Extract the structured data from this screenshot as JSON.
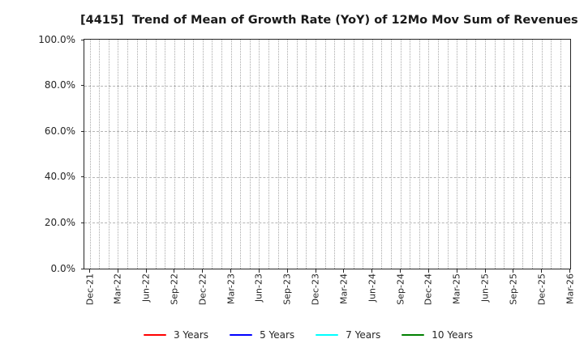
{
  "chart_data": {
    "type": "line",
    "title": "[4415]  Trend of Mean of Growth Rate (YoY) of 12Mo Mov Sum of Revenues",
    "x_axis": {
      "tick_labels": [
        "Dec-21",
        "Mar-22",
        "Jun-22",
        "Sep-22",
        "Dec-22",
        "Mar-23",
        "Jun-23",
        "Sep-23",
        "Dec-23",
        "Mar-24",
        "Jun-24",
        "Sep-24",
        "Dec-24",
        "Mar-25",
        "Jun-25",
        "Sep-25",
        "Dec-25",
        "Mar-26"
      ],
      "tick_every_months": 3,
      "minor_gridlines": "monthly"
    },
    "y_axis": {
      "tick_labels": [
        "0.0%",
        "20.0%",
        "40.0%",
        "60.0%",
        "80.0%",
        "100.0%"
      ],
      "tick_values": [
        0,
        20,
        40,
        60,
        80,
        100
      ],
      "range": [
        0,
        100
      ],
      "unit": "%"
    },
    "grid": true,
    "legend_position": "bottom",
    "series": [
      {
        "name": "3 Years",
        "color": "#ff0000",
        "values": []
      },
      {
        "name": "5 Years",
        "color": "#0000ff",
        "values": []
      },
      {
        "name": "7 Years",
        "color": "#00ffff",
        "values": []
      },
      {
        "name": "10 Years",
        "color": "#008000",
        "values": []
      }
    ],
    "plot_is_empty": true
  },
  "colors": {
    "background": "#ffffff",
    "axis_spine": "#262626",
    "grid_minor": "#a9a9a9",
    "grid_major": "#b4b4b4",
    "title_text": "#1a1a1a",
    "tick_text": "#262626"
  }
}
